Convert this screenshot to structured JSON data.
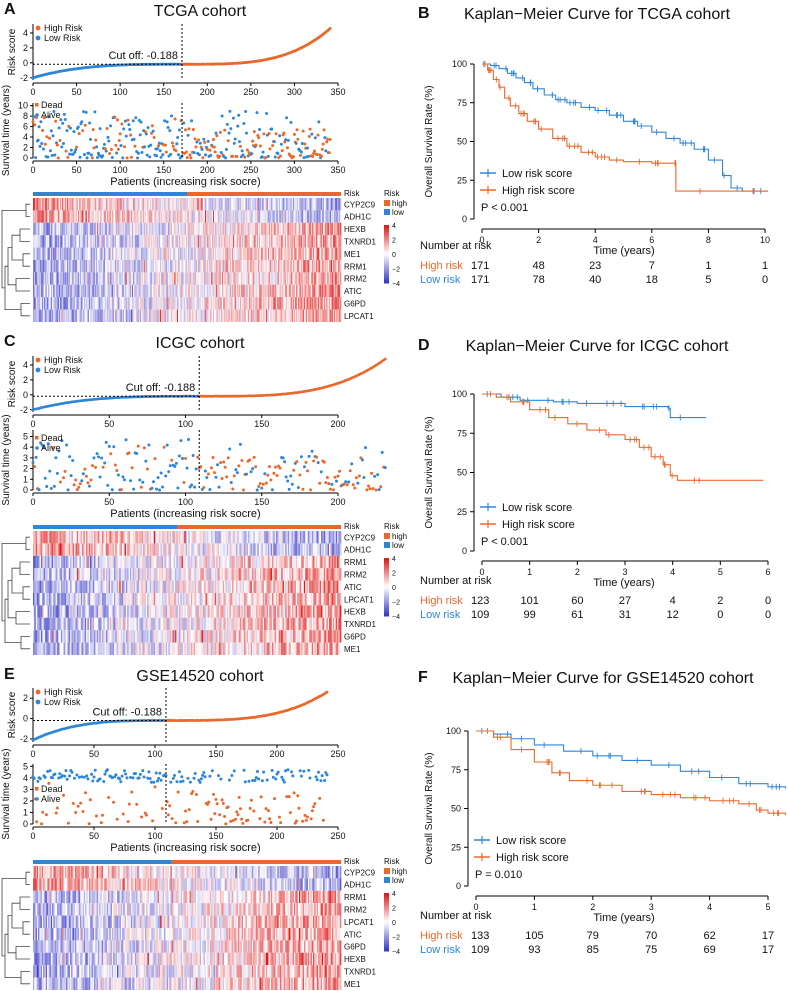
{
  "colors": {
    "high": "#e9692c",
    "low": "#2f86d6",
    "hm_low": "#3a3ac8",
    "hm_mid": "#ffffff",
    "hm_high": "#e01a1a"
  },
  "chart_data": [
    {
      "panel": "A",
      "type": "scatter",
      "title": "TCGA cohort",
      "n": 342,
      "split": 171,
      "cutoff_label": "Cut off: -0.188",
      "xticks": [
        0,
        50,
        100,
        150,
        200,
        250,
        300,
        350
      ],
      "risk": {
        "ylabel": "Risk score",
        "yticks": [
          -2,
          0,
          2,
          4
        ],
        "ylim": [
          -2.3,
          5.2
        ],
        "min": -2.0,
        "max": 4.6,
        "legend": [
          "High Risk",
          "Low Risk"
        ]
      },
      "surv": {
        "ylabel": "Survival time (years)",
        "yticks": [
          0,
          2,
          4,
          6,
          8,
          10
        ],
        "ylim": [
          0,
          10.5
        ],
        "legend": [
          "Dead",
          "Alive"
        ],
        "xlabel": "Patients (increasing risk socre)"
      },
      "heatmap": {
        "genes": [
          "CYP2C9",
          "ADH1C",
          "HEXB",
          "TXNRD1",
          "ME1",
          "RRM1",
          "RRM2",
          "ATIC",
          "G6PD",
          "LPCAT1"
        ],
        "direction": [
          -1,
          -1,
          1,
          1,
          1,
          1,
          1,
          1,
          1,
          1
        ],
        "risk_label": "Risk",
        "legend_title": "Risk",
        "legend": [
          "high",
          "low"
        ],
        "scale": [
          "4",
          "2",
          "0",
          "−2",
          "−4"
        ]
      }
    },
    {
      "panel": "B",
      "type": "line",
      "title": "Kaplan−Meier Curve for TCGA cohort",
      "ylabel": "Overall Survival Rate (%)",
      "xlabel": "Time (years)",
      "xticks": [
        0,
        2,
        4,
        6,
        8,
        10
      ],
      "yticks": [
        0,
        25,
        50,
        75,
        100
      ],
      "xlim": [
        0,
        10.3
      ],
      "legend": [
        "Low risk score",
        "High risk score"
      ],
      "pvalue": "P < 0.001",
      "series": [
        {
          "name": "Low risk score",
          "points": [
            [
              0,
              100
            ],
            [
              0.3,
              99
            ],
            [
              0.6,
              97
            ],
            [
              0.9,
              94
            ],
            [
              1.2,
              91
            ],
            [
              1.5,
              88
            ],
            [
              1.8,
              84
            ],
            [
              2.2,
              80
            ],
            [
              2.6,
              77
            ],
            [
              3,
              75
            ],
            [
              3.5,
              72
            ],
            [
              4,
              70
            ],
            [
              4.5,
              67
            ],
            [
              5,
              63
            ],
            [
              5.5,
              60
            ],
            [
              6,
              56
            ],
            [
              6.5,
              52
            ],
            [
              7,
              49
            ],
            [
              7.5,
              45
            ],
            [
              8,
              38
            ],
            [
              8.5,
              28
            ],
            [
              8.8,
              20
            ],
            [
              9.2,
              18
            ],
            [
              10.1,
              18
            ]
          ]
        },
        {
          "name": "High risk score",
          "points": [
            [
              0,
              100
            ],
            [
              0.2,
              96
            ],
            [
              0.4,
              90
            ],
            [
              0.6,
              85
            ],
            [
              0.8,
              78
            ],
            [
              1.0,
              73
            ],
            [
              1.3,
              68
            ],
            [
              1.6,
              63
            ],
            [
              2,
              58
            ],
            [
              2.5,
              52
            ],
            [
              3,
              47
            ],
            [
              3.5,
              43
            ],
            [
              4,
              40
            ],
            [
              4.5,
              38
            ],
            [
              5,
              37
            ],
            [
              6,
              36
            ],
            [
              6.8,
              36
            ],
            [
              6.85,
              18
            ],
            [
              10.1,
              18
            ]
          ]
        }
      ],
      "risk_table": {
        "title": "Number at risk",
        "rows": [
          {
            "label": "High risk",
            "values": [
              "171",
              "48",
              "23",
              "7",
              "1",
              "1"
            ]
          },
          {
            "label": "Low risk",
            "values": [
              "171",
              "78",
              "40",
              "18",
              "5",
              "0"
            ]
          }
        ]
      }
    },
    {
      "panel": "C",
      "type": "scatter",
      "title": "ICGC cohort",
      "n": 232,
      "split": 109,
      "cutoff_label": "Cut off: -0.188",
      "xticks": [
        0,
        50,
        100,
        150,
        200
      ],
      "risk": {
        "ylabel": "Risk score",
        "yticks": [
          -2,
          0,
          2,
          4
        ],
        "ylim": [
          -2.3,
          5.2
        ],
        "min": -2.0,
        "max": 4.8,
        "legend": [
          "High Risk",
          "Low Risk"
        ]
      },
      "surv": {
        "ylabel": "Survival time (years)",
        "yticks": [
          0,
          1,
          2,
          3,
          4,
          5
        ],
        "ylim": [
          0,
          5.6
        ],
        "legend": [
          "Dead",
          "Alive"
        ],
        "xlabel": "Patients (increasing risk socre)"
      },
      "heatmap": {
        "genes": [
          "CYP2C9",
          "ADH1C",
          "RRM1",
          "RRM2",
          "ATIC",
          "LPCAT1",
          "HEXB",
          "TXNRD1",
          "G6PD",
          "ME1"
        ],
        "direction": [
          -1,
          -1,
          1,
          1,
          1,
          1,
          1,
          1,
          1,
          1
        ],
        "risk_label": "Risk",
        "legend_title": "Risk",
        "legend": [
          "high",
          "low"
        ],
        "scale": [
          "4",
          "2",
          "0",
          "−2",
          "−4"
        ]
      }
    },
    {
      "panel": "D",
      "type": "line",
      "title": "Kaplan−Meier Curve for ICGC cohort",
      "ylabel": "Overall Survival Rate (%)",
      "xlabel": "Time (years)",
      "xticks": [
        0,
        1,
        2,
        3,
        4,
        5,
        6
      ],
      "yticks": [
        0,
        25,
        50,
        75,
        100
      ],
      "xlim": [
        0,
        6.15
      ],
      "legend": [
        "Low risk score",
        "High risk score"
      ],
      "pvalue": "P < 0.001",
      "series": [
        {
          "name": "Low risk score",
          "points": [
            [
              0,
              100
            ],
            [
              0.4,
              98
            ],
            [
              0.8,
              96
            ],
            [
              1.5,
              95
            ],
            [
              2.0,
              94
            ],
            [
              2.5,
              94
            ],
            [
              3.0,
              92
            ],
            [
              3.5,
              92
            ],
            [
              3.9,
              91
            ],
            [
              3.95,
              85
            ],
            [
              4.7,
              85
            ]
          ]
        },
        {
          "name": "High risk score",
          "points": [
            [
              0,
              100
            ],
            [
              0.3,
              98
            ],
            [
              0.6,
              95
            ],
            [
              1,
              90
            ],
            [
              1.4,
              85
            ],
            [
              1.8,
              81
            ],
            [
              2.2,
              77
            ],
            [
              2.6,
              74
            ],
            [
              3,
              71
            ],
            [
              3.3,
              66
            ],
            [
              3.55,
              60
            ],
            [
              3.8,
              55
            ],
            [
              3.95,
              48
            ],
            [
              4.1,
              45
            ],
            [
              5.9,
              45
            ]
          ]
        }
      ],
      "risk_table": {
        "title": "Number at risk",
        "rows": [
          {
            "label": "High risk",
            "values": [
              "123",
              "101",
              "60",
              "27",
              "4",
              "2",
              "0"
            ]
          },
          {
            "label": "Low risk",
            "values": [
              "109",
              "99",
              "61",
              "31",
              "12",
              "0",
              "0"
            ]
          }
        ]
      }
    },
    {
      "panel": "E",
      "type": "scatter",
      "title": "GSE14520 cohort",
      "n": 242,
      "split": 109,
      "cutoff_label": "Cut off: -0.188",
      "xticks": [
        0,
        50,
        100,
        150,
        200,
        250
      ],
      "risk": {
        "ylabel": "Risk score",
        "yticks": [
          -2,
          0,
          2
        ],
        "ylim": [
          -2.3,
          3.0
        ],
        "min": -2.1,
        "max": 2.6,
        "legend": [
          "High Risk",
          "Low Risk"
        ]
      },
      "surv": {
        "ylabel": "Survival time (years)",
        "yticks": [
          0,
          1,
          2,
          3,
          4,
          5
        ],
        "ylim": [
          0,
          5.2
        ],
        "legend": [
          "Dead",
          "Alive"
        ],
        "xlabel": "Patients (increasing risk socre)"
      },
      "heatmap": {
        "genes": [
          "CYP2C9",
          "ADH1C",
          "RRM1",
          "RRM2",
          "LPCAT1",
          "ATIC",
          "G6PD",
          "HEXB",
          "TXNRD1",
          "ME1"
        ],
        "direction": [
          -1,
          -1,
          1,
          1,
          1,
          1,
          1,
          1,
          1,
          1
        ],
        "risk_label": "Risk",
        "legend_title": "Risk",
        "legend": [
          "high",
          "low"
        ],
        "scale": [
          "4",
          "2",
          "0",
          "−2",
          "−4"
        ]
      }
    },
    {
      "panel": "F",
      "type": "line",
      "title": "Kaplan−Meier Curve for GSE14520 cohort",
      "ylabel": "Overall Survival Rate (%)",
      "xlabel": "Time (years)",
      "xticks": [
        0,
        1,
        2,
        3,
        4,
        5
      ],
      "yticks": [
        0,
        25,
        50,
        75,
        100
      ],
      "xlim": [
        0,
        5.3
      ],
      "legend": [
        "Low risk score",
        "High risk score"
      ],
      "pvalue": "P = 0.010",
      "series": [
        {
          "name": "Low risk score",
          "points": [
            [
              0,
              100
            ],
            [
              0.3,
              98
            ],
            [
              0.6,
              95
            ],
            [
              1,
              91
            ],
            [
              1.5,
              87
            ],
            [
              2,
              84
            ],
            [
              2.5,
              81
            ],
            [
              3,
              78
            ],
            [
              3.5,
              74
            ],
            [
              4,
              70
            ],
            [
              4.5,
              66
            ],
            [
              5,
              64
            ],
            [
              5.3,
              63
            ]
          ]
        },
        {
          "name": "High risk score",
          "points": [
            [
              0,
              100
            ],
            [
              0.3,
              96
            ],
            [
              0.6,
              88
            ],
            [
              1,
              80
            ],
            [
              1.3,
              73
            ],
            [
              1.6,
              68
            ],
            [
              2,
              65
            ],
            [
              2.5,
              61
            ],
            [
              3,
              59
            ],
            [
              3.5,
              57
            ],
            [
              4,
              55
            ],
            [
              4.5,
              53
            ],
            [
              4.8,
              49
            ],
            [
              5,
              47
            ],
            [
              5.3,
              46
            ]
          ]
        }
      ],
      "risk_table": {
        "title": "Number at risk",
        "rows": [
          {
            "label": "High risk",
            "values": [
              "133",
              "105",
              "79",
              "70",
              "62",
              "17"
            ]
          },
          {
            "label": "Low risk",
            "values": [
              "109",
              "93",
              "85",
              "75",
              "69",
              "17"
            ]
          }
        ]
      }
    }
  ]
}
